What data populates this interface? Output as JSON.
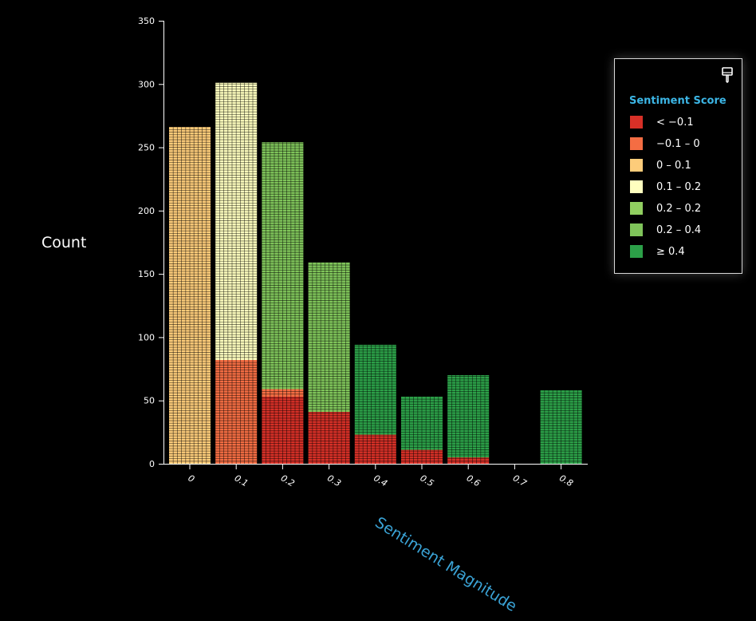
{
  "chart_data": {
    "type": "bar",
    "title": "",
    "ylabel": "Count",
    "xlabel": "Sentiment Magnitude",
    "ylim": [
      0,
      350
    ],
    "yticks": [
      0,
      50,
      100,
      150,
      200,
      250,
      300,
      350
    ],
    "xticks": [
      "0",
      "0.1",
      "0.2",
      "0.3",
      "0.4",
      "0.5",
      "0.6",
      "0.7",
      "0.8"
    ],
    "legend_title": "Sentiment Score",
    "legend_position": "top-right",
    "series": [
      {
        "name": "< −0.1",
        "color": "#d73027"
      },
      {
        "name": "−0.1 – 0",
        "color": "#f46d43"
      },
      {
        "name": "0 – 0.1",
        "color": "#fdcc7a"
      },
      {
        "name": "0.1 – 0.2",
        "color": "#ffffbf"
      },
      {
        "name": "0.2 – 0.2",
        "color": "#91cf60"
      },
      {
        "name": "0.2 – 0.4",
        "color": "#7fc45a"
      },
      {
        "name": "≥ 0.4",
        "color": "#2ca048"
      }
    ],
    "bins": [
      {
        "x": "0",
        "total": 266,
        "segments": [
          {
            "series": 2,
            "value": 266
          }
        ]
      },
      {
        "x": "0.1",
        "total": 301,
        "segments": [
          {
            "series": 1,
            "value": 82
          },
          {
            "series": 3,
            "value": 219
          }
        ]
      },
      {
        "x": "0.2",
        "total": 254,
        "segments": [
          {
            "series": 0,
            "value": 53
          },
          {
            "series": 1,
            "value": 6
          },
          {
            "series": 5,
            "value": 195
          }
        ]
      },
      {
        "x": "0.3",
        "total": 159,
        "segments": [
          {
            "series": 0,
            "value": 41
          },
          {
            "series": 5,
            "value": 118
          }
        ]
      },
      {
        "x": "0.4",
        "total": 94,
        "segments": [
          {
            "series": 0,
            "value": 23
          },
          {
            "series": 6,
            "value": 71
          }
        ]
      },
      {
        "x": "0.5",
        "total": 53,
        "segments": [
          {
            "series": 0,
            "value": 11
          },
          {
            "series": 6,
            "value": 42
          }
        ]
      },
      {
        "x": "0.6",
        "total": 70,
        "segments": [
          {
            "series": 0,
            "value": 5
          },
          {
            "series": 6,
            "value": 65
          }
        ]
      },
      {
        "x": "0.7",
        "total": 0,
        "segments": []
      },
      {
        "x": "0.8",
        "total": 58,
        "segments": [
          {
            "series": 6,
            "value": 58
          }
        ]
      }
    ]
  },
  "legend_icon": "paint-brush-icon"
}
